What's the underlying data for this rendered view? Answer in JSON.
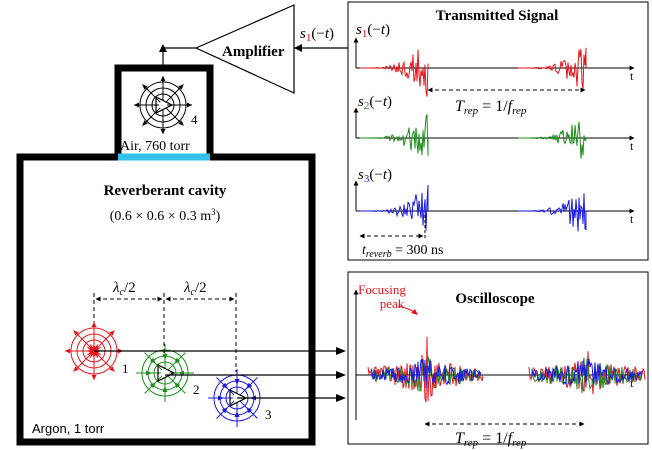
{
  "colors": {
    "red": "#e8141c",
    "green": "#1e8e1e",
    "blue": "#1a1ae0",
    "cyan": "#33c0ea",
    "black": "#000000"
  },
  "labels": {
    "amplifier": "Amplifier",
    "air": "Air, 760 torr",
    "cavity_title": "Reverberant cavity",
    "cavity_dims": "(0.6 × 0.6 × 0.3 m³)",
    "argon": "Argon, 1 torr",
    "lambda_half": "λc/2",
    "antenna_4": "4",
    "antenna_1": "1",
    "antenna_2": "2",
    "antenna_3": "3"
  },
  "transmitted": {
    "title": "Transmitted Signal",
    "s1": "s1(−t)",
    "s2": "s2(−t)",
    "s3": "s3(−t)",
    "t": "t",
    "trep": "Trep = 1/frep",
    "treverb": "treverb = 300 ns"
  },
  "amp_input_label": "s1(−t)",
  "oscilloscope": {
    "title": "Oscilloscope",
    "focusing": "Focusing",
    "peak": "peak",
    "t": "t",
    "trep": "Trep = 1/frep"
  }
}
